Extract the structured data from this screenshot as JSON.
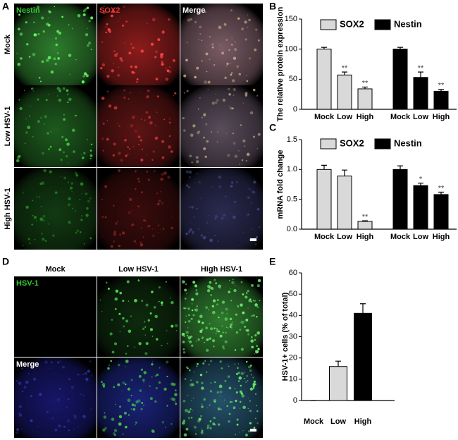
{
  "figure": {
    "panel_labels": [
      "A",
      "B",
      "C",
      "D",
      "E"
    ]
  },
  "images": {
    "panel_a": {
      "columns": [
        "Nestin",
        "SOX2",
        "Merge"
      ],
      "rows": [
        "Mock",
        "Low HSV-1",
        "High HSV-1"
      ]
    },
    "panel_d": {
      "columns": [
        "Mock",
        "Low HSV-1",
        "High HSV-1"
      ],
      "rows": [
        "HSV-1",
        "Merge"
      ]
    }
  },
  "chart_data": [
    {
      "type": "bar",
      "ylabel": "The relative protein expression",
      "categories": [
        "Mock",
        "Low",
        "High"
      ],
      "series": [
        {
          "name": "SOX2",
          "color": "#d9d9d9",
          "values": [
            100,
            57,
            34
          ],
          "errors": [
            3,
            5,
            3
          ],
          "significance": [
            null,
            "**",
            "**"
          ]
        },
        {
          "name": "Nestin",
          "color": "#000000",
          "values": [
            100,
            53,
            30
          ],
          "errors": [
            3,
            9,
            3
          ],
          "significance": [
            null,
            "**",
            "**"
          ]
        }
      ],
      "ylim": [
        0,
        150
      ],
      "yticks": [
        0,
        50,
        100,
        150
      ]
    },
    {
      "type": "bar",
      "ylabel": "mRNA fold change",
      "categories": [
        "Mock",
        "Low",
        "High"
      ],
      "series": [
        {
          "name": "SOX2",
          "color": "#d9d9d9",
          "values": [
            1.0,
            0.89,
            0.13
          ],
          "errors": [
            0.07,
            0.1,
            0.01
          ],
          "significance": [
            null,
            null,
            "**"
          ]
        },
        {
          "name": "Nestin",
          "color": "#000000",
          "values": [
            1.0,
            0.73,
            0.58
          ],
          "errors": [
            0.06,
            0.04,
            0.04
          ],
          "significance": [
            null,
            "*",
            "**"
          ]
        }
      ],
      "ylim": [
        0,
        1.5
      ],
      "yticks": [
        {
          "value": 0,
          "label": "0.0"
        },
        {
          "value": 0.5,
          "label": "0.5"
        },
        {
          "value": 1,
          "label": "1.0"
        },
        {
          "value": 1.5,
          "label": "1.5"
        }
      ]
    },
    {
      "type": "bar",
      "ylabel": "HSV-1+ cells (% of total)",
      "categories": [
        "Mock",
        "Low",
        "High"
      ],
      "values": [
        0,
        16,
        41
      ],
      "errors": [
        0,
        2.5,
        4.5
      ],
      "colors": [
        "#ffffff",
        "#d9d9d9",
        "#000000"
      ],
      "ylim": [
        0,
        60
      ],
      "yticks": [
        0,
        10,
        20,
        30,
        40,
        50,
        60
      ]
    }
  ]
}
